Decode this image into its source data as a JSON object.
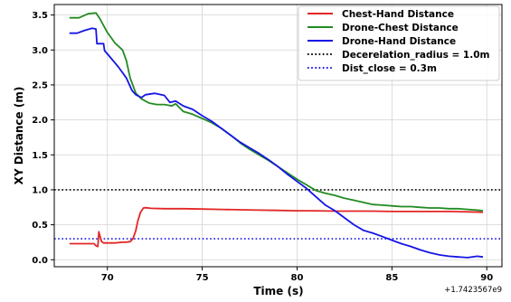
{
  "chart_data": {
    "type": "line",
    "title": "",
    "xlabel": "Time (s)",
    "ylabel": "XY Distance (m)",
    "x_offset_label": "+1.7423567e9",
    "xlim": [
      67.2,
      90.8
    ],
    "ylim": [
      -0.1,
      3.65
    ],
    "xticks": [
      70,
      75,
      80,
      85,
      90
    ],
    "yticks": [
      0.0,
      0.5,
      1.0,
      1.5,
      2.0,
      2.5,
      3.0,
      3.5
    ],
    "xtick_labels": [
      "70",
      "75",
      "80",
      "85",
      "90"
    ],
    "ytick_labels": [
      "0.0",
      "0.5",
      "1.0",
      "1.5",
      "2.0",
      "2.5",
      "3.0",
      "3.5"
    ],
    "grid": true,
    "legend_position": "top-right",
    "series": [
      {
        "name": "Chest-Hand Distance",
        "color": "#e32626",
        "x": [
          68.0,
          68.8,
          69.3,
          69.4,
          69.5,
          69.55,
          69.6,
          69.7,
          69.8,
          70.0,
          70.4,
          70.8,
          71.0,
          71.2,
          71.35,
          71.5,
          71.6,
          71.75,
          71.9,
          72.0,
          72.3,
          73.0,
          74.0,
          75.0,
          76.0,
          77.0,
          78.0,
          79.0,
          80.0,
          81.0,
          82.0,
          83.0,
          84.0,
          85.0,
          86.0,
          87.0,
          88.0,
          89.0,
          89.8
        ],
        "y": [
          0.23,
          0.23,
          0.23,
          0.2,
          0.19,
          0.4,
          0.35,
          0.26,
          0.24,
          0.24,
          0.24,
          0.25,
          0.25,
          0.26,
          0.3,
          0.42,
          0.55,
          0.68,
          0.74,
          0.745,
          0.735,
          0.73,
          0.73,
          0.725,
          0.72,
          0.715,
          0.71,
          0.705,
          0.7,
          0.7,
          0.695,
          0.695,
          0.695,
          0.69,
          0.69,
          0.69,
          0.69,
          0.685,
          0.68
        ]
      },
      {
        "name": "Drone-Chest Distance",
        "color": "#228b22",
        "x": [
          68.0,
          68.5,
          69.0,
          69.4,
          69.6,
          69.8,
          70.0,
          70.4,
          70.8,
          71.0,
          71.2,
          71.5,
          71.8,
          72.2,
          72.6,
          73.0,
          73.4,
          73.6,
          74.0,
          74.5,
          75.0,
          75.5,
          76.0,
          76.5,
          77.0,
          77.5,
          78.0,
          78.5,
          79.0,
          79.5,
          80.0,
          80.5,
          81.0,
          81.5,
          82.0,
          82.5,
          83.0,
          83.5,
          84.0,
          84.5,
          85.0,
          85.5,
          86.0,
          86.5,
          87.0,
          87.5,
          88.0,
          88.5,
          89.0,
          89.5,
          89.8
        ],
        "y": [
          3.46,
          3.46,
          3.52,
          3.53,
          3.45,
          3.35,
          3.25,
          3.1,
          3.0,
          2.85,
          2.6,
          2.38,
          2.3,
          2.24,
          2.22,
          2.22,
          2.2,
          2.23,
          2.12,
          2.08,
          2.02,
          1.96,
          1.88,
          1.78,
          1.67,
          1.58,
          1.5,
          1.42,
          1.33,
          1.24,
          1.15,
          1.07,
          0.99,
          0.95,
          0.92,
          0.88,
          0.85,
          0.82,
          0.79,
          0.78,
          0.77,
          0.76,
          0.76,
          0.75,
          0.74,
          0.74,
          0.73,
          0.73,
          0.72,
          0.71,
          0.7
        ]
      },
      {
        "name": "Drone-Hand Distance",
        "color": "#1515e6",
        "x": [
          68.0,
          68.4,
          68.8,
          69.2,
          69.4,
          69.45,
          69.8,
          69.85,
          70.2,
          70.6,
          71.0,
          71.3,
          71.5,
          71.8,
          72.0,
          72.5,
          73.0,
          73.3,
          73.6,
          74.0,
          74.5,
          75.0,
          75.5,
          76.0,
          76.5,
          77.0,
          77.5,
          78.0,
          78.5,
          79.0,
          79.5,
          80.0,
          80.5,
          81.0,
          81.5,
          82.0,
          82.5,
          83.0,
          83.5,
          84.0,
          84.5,
          85.0,
          85.5,
          86.0,
          86.5,
          87.0,
          87.5,
          88.0,
          88.5,
          89.0,
          89.5,
          89.8
        ],
        "y": [
          3.24,
          3.24,
          3.28,
          3.31,
          3.3,
          3.09,
          3.09,
          2.99,
          2.88,
          2.75,
          2.6,
          2.42,
          2.36,
          2.32,
          2.36,
          2.38,
          2.35,
          2.25,
          2.27,
          2.2,
          2.15,
          2.06,
          1.98,
          1.88,
          1.78,
          1.68,
          1.6,
          1.52,
          1.43,
          1.33,
          1.22,
          1.12,
          1.02,
          0.9,
          0.78,
          0.7,
          0.6,
          0.5,
          0.42,
          0.38,
          0.33,
          0.28,
          0.23,
          0.19,
          0.14,
          0.1,
          0.07,
          0.05,
          0.04,
          0.03,
          0.05,
          0.04
        ]
      }
    ],
    "reference_lines": [
      {
        "name": "Decerelation_radius = 1.0m",
        "y": 1.0,
        "color": "#000000",
        "style": "dotted"
      },
      {
        "name": "Dist_close = 0.3m",
        "y": 0.3,
        "color": "#1515e6",
        "style": "dotted"
      }
    ]
  }
}
